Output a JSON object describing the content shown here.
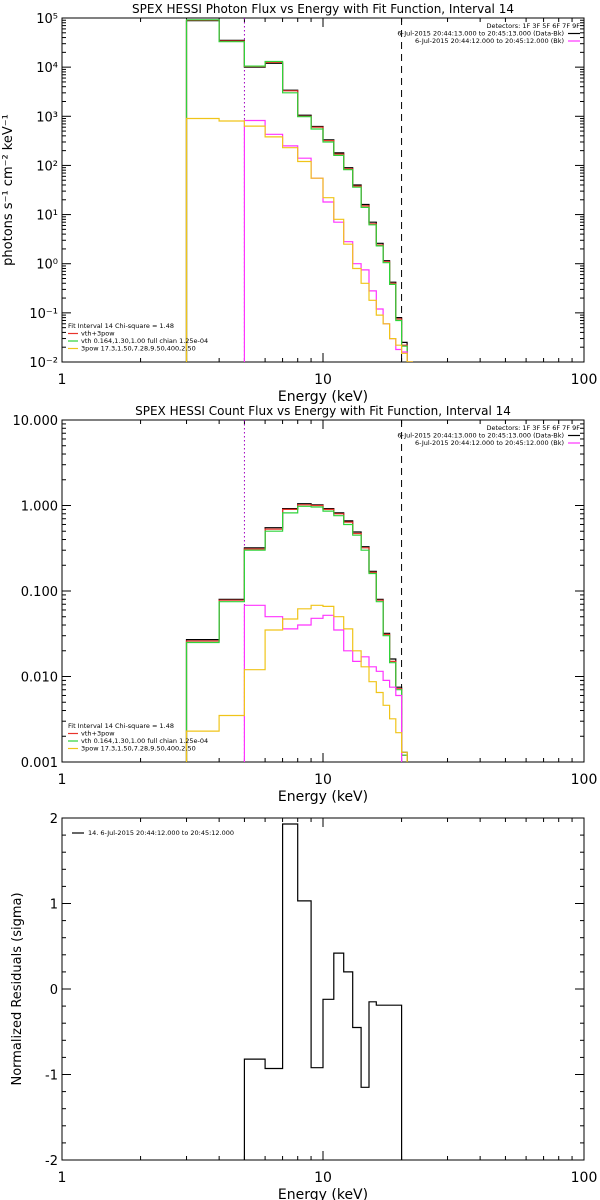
{
  "colors": {
    "data": "#000000",
    "total": "#e8342c",
    "vth": "#2fd33a",
    "bpow": "#ff33ff",
    "bpow_alt": "#f0c419",
    "cutoff": "#a000c0"
  },
  "chart_data": [
    {
      "id": "photon",
      "type": "line",
      "title": "SPEX HESSI Photon Flux vs Energy with Fit Function, Interval 14",
      "xlabel": "Energy (keV)",
      "ylabel": "photons s⁻¹ cm⁻² keV⁻¹",
      "xscale": "log",
      "yscale": "log",
      "xlim": [
        1,
        100
      ],
      "ylim": [
        0.01,
        100000
      ],
      "x_ticks": [
        {
          "v": 1,
          "label": "1"
        },
        {
          "v": 10,
          "label": "10"
        },
        {
          "v": 100,
          "label": "100"
        }
      ],
      "y_ticks": [
        {
          "v": 0.01,
          "label": "10⁻²"
        },
        {
          "v": 0.1,
          "label": "10⁻¹"
        },
        {
          "v": 1,
          "label": "10⁰"
        },
        {
          "v": 10,
          "label": "10¹"
        },
        {
          "v": 100,
          "label": "10²"
        },
        {
          "v": 1000,
          "label": "10³"
        },
        {
          "v": 10000,
          "label": "10⁴"
        },
        {
          "v": 100000,
          "label": "10⁵"
        }
      ],
      "vlines": [
        {
          "x": 5.0,
          "style": "dotted",
          "color": "cutoff"
        },
        {
          "x": 20.0,
          "style": "dashed",
          "color": "data"
        }
      ],
      "header": [
        "Detectors: 1F 3F 5F 6F 7F 9F",
        "6-Jul-2015 20:44:13.000 to 20:45:13.000 (Data-Bk)",
        "6-Jul-2015 20:44:12.000 to 20:45:12.000 (Bk)"
      ],
      "legend": [
        "Fit Interval 14    Chi-square = 1.48",
        "vth+3pow",
        "vth 0.164,1.30,1.00  full chian 1.25e-04",
        "3pow 17.3,1.50,7.28,9.50,400,2.50"
      ],
      "series": [
        {
          "name": "data",
          "color": "data",
          "edges": [
            3,
            4,
            5,
            6,
            7,
            8,
            9,
            10,
            11,
            12,
            13,
            14,
            15,
            16,
            17,
            18,
            19,
            20,
            21,
            22
          ],
          "values": [
            88000,
            35000,
            10000,
            12000,
            3400,
            1050,
            620,
            330,
            180,
            90,
            40,
            16,
            7,
            2.6,
            1.15,
            0.42,
            0.08,
            0.025,
            0.01
          ]
        },
        {
          "name": "total",
          "color": "total",
          "edges": [
            3,
            4,
            5,
            6,
            7,
            8,
            9,
            10,
            11,
            12,
            13,
            14,
            15,
            16,
            17,
            18,
            19,
            20,
            21,
            22
          ],
          "values": [
            90000,
            34000,
            10300,
            12500,
            3300,
            1000,
            600,
            320,
            170,
            85,
            38,
            15,
            6.5,
            2.4,
            1.1,
            0.4,
            0.075,
            0.022,
            0.01
          ]
        },
        {
          "name": "vth",
          "color": "vth",
          "edges": [
            3,
            4,
            5,
            6,
            7,
            8,
            9,
            10,
            11,
            12,
            13,
            14,
            15,
            16,
            17,
            18,
            19,
            20,
            21,
            22
          ],
          "values": [
            92000,
            33000,
            10500,
            13000,
            3000,
            980,
            550,
            300,
            160,
            82,
            36,
            14,
            6.2,
            2.3,
            1.05,
            0.38,
            0.07,
            0.021,
            0.009
          ]
        },
        {
          "name": "bpow",
          "color": "bpow",
          "edges": [
            5,
            6,
            7,
            8,
            9,
            10,
            11,
            12,
            13,
            14,
            15,
            16,
            17,
            18,
            19,
            20,
            21
          ],
          "values": [
            820,
            430,
            250,
            140,
            55,
            18,
            7,
            2.8,
            1.0,
            0.75,
            0.28,
            0.12,
            0.06,
            0.03,
            0.018,
            0.016
          ]
        },
        {
          "name": "bpow_alt",
          "color": "bpow_alt",
          "edges": [
            3,
            4,
            5,
            6,
            7,
            8,
            9,
            10,
            11,
            12,
            13,
            14,
            15,
            16,
            17,
            18,
            19,
            20,
            21,
            22
          ],
          "values": [
            900,
            800,
            630,
            380,
            230,
            120,
            55,
            22,
            8,
            2.5,
            0.8,
            0.4,
            0.18,
            0.09,
            0.06,
            0.03,
            0.022,
            0.015,
            0.01
          ]
        }
      ]
    },
    {
      "id": "count",
      "type": "line",
      "title": "SPEX HESSI Count Flux vs Energy with Fit Function, Interval 14",
      "xlabel": "Energy (keV)",
      "ylabel": "",
      "xscale": "log",
      "yscale": "log",
      "xlim": [
        1,
        100
      ],
      "ylim": [
        0.001,
        10
      ],
      "x_ticks": [
        {
          "v": 1,
          "label": "1"
        },
        {
          "v": 10,
          "label": "10"
        },
        {
          "v": 100,
          "label": "100"
        }
      ],
      "y_ticks": [
        {
          "v": 0.001,
          "label": "0.001"
        },
        {
          "v": 0.01,
          "label": "0.010"
        },
        {
          "v": 0.1,
          "label": "0.100"
        },
        {
          "v": 1,
          "label": "1.000"
        },
        {
          "v": 10,
          "label": "10.000"
        }
      ],
      "vlines": [
        {
          "x": 5.0,
          "style": "dotted",
          "color": "cutoff"
        },
        {
          "x": 20.0,
          "style": "dashed",
          "color": "data"
        }
      ],
      "header": [
        "Detectors: 1F 3F 5F 6F 7F 9F",
        "6-Jul-2015 20:44:13.000 to 20:45:13.000 (Data-Bk)",
        "6-Jul-2015 20:44:12.000 to 20:45:12.000 (Bk)"
      ],
      "legend": [
        "Fit Interval 14    Chi-square = 1.48",
        "vth+3pow",
        "vth 0.164,1.30,1.00  full chian 1.25e-04",
        "3pow 17.3,1.50,7.28,9.50,400,2.50"
      ],
      "series": [
        {
          "name": "data",
          "color": "data",
          "edges": [
            3,
            4,
            5,
            6,
            7,
            8,
            9,
            10,
            11,
            12,
            13,
            14,
            15,
            16,
            17,
            18,
            19,
            20,
            21,
            22
          ],
          "values": [
            0.027,
            0.08,
            0.32,
            0.55,
            0.92,
            1.05,
            1.02,
            0.92,
            0.82,
            0.66,
            0.49,
            0.33,
            0.17,
            0.08,
            0.032,
            0.016,
            0.0075,
            0.0013,
            0.0009
          ]
        },
        {
          "name": "total",
          "color": "total",
          "edges": [
            3,
            4,
            5,
            6,
            7,
            8,
            9,
            10,
            11,
            12,
            13,
            14,
            15,
            16,
            17,
            18,
            19,
            20,
            21,
            22
          ],
          "values": [
            0.026,
            0.078,
            0.31,
            0.53,
            0.9,
            1.02,
            1.0,
            0.9,
            0.8,
            0.64,
            0.47,
            0.32,
            0.165,
            0.078,
            0.031,
            0.015,
            0.0072,
            0.0012,
            0.0009
          ]
        },
        {
          "name": "vth",
          "color": "vth",
          "edges": [
            3,
            4,
            5,
            6,
            7,
            8,
            9,
            10,
            11,
            12,
            13,
            14,
            15,
            16,
            17,
            18,
            19,
            20,
            21,
            22
          ],
          "values": [
            0.025,
            0.075,
            0.3,
            0.5,
            0.82,
            0.98,
            0.96,
            0.86,
            0.76,
            0.6,
            0.45,
            0.3,
            0.16,
            0.075,
            0.03,
            0.0145,
            0.007,
            0.0012,
            0.0008
          ]
        },
        {
          "name": "bpow",
          "color": "bpow",
          "edges": [
            5,
            6,
            7,
            8,
            9,
            10,
            11,
            12,
            13,
            14,
            15,
            16,
            17,
            18,
            19,
            20
          ],
          "values": [
            0.068,
            0.05,
            0.036,
            0.04,
            0.048,
            0.052,
            0.035,
            0.02,
            0.015,
            0.017,
            0.013,
            0.0115,
            0.009,
            0.0075,
            0.006
          ]
        },
        {
          "name": "bpow_alt",
          "color": "bpow_alt",
          "edges": [
            3,
            4,
            5,
            6,
            7,
            8,
            9,
            10,
            11,
            12,
            13,
            14,
            15,
            16,
            17,
            18,
            19,
            20,
            21,
            22
          ],
          "values": [
            0.0023,
            0.0035,
            0.012,
            0.035,
            0.047,
            0.062,
            0.068,
            0.066,
            0.05,
            0.036,
            0.02,
            0.013,
            0.0087,
            0.0065,
            0.0046,
            0.0032,
            0.0022,
            0.0013,
            0.0009
          ]
        }
      ]
    },
    {
      "id": "resid",
      "type": "line",
      "title": "",
      "xlabel": "Energy (keV)",
      "ylabel": "Normalized Residuals (sigma)",
      "xscale": "log",
      "yscale": "linear",
      "xlim": [
        1,
        100
      ],
      "ylim": [
        -2,
        2
      ],
      "x_ticks": [
        {
          "v": 1,
          "label": "1"
        },
        {
          "v": 10,
          "label": "10"
        },
        {
          "v": 100,
          "label": "100"
        }
      ],
      "y_ticks": [
        {
          "v": -2,
          "label": "-2"
        },
        {
          "v": -1,
          "label": "-1"
        },
        {
          "v": 0,
          "label": "0"
        },
        {
          "v": 1,
          "label": "1"
        },
        {
          "v": 2,
          "label": "2"
        }
      ],
      "vlines": [],
      "header": [],
      "legend_line": "14.  6-Jul-2015 20:44:12.000 to 20:45:12.000",
      "series": [
        {
          "name": "residuals",
          "color": "data",
          "edges": [
            5,
            6,
            7,
            8,
            9,
            10,
            11,
            12,
            13,
            14,
            15,
            16,
            17,
            18,
            19,
            20
          ],
          "values": [
            -0.82,
            -0.93,
            1.93,
            1.03,
            -0.92,
            -0.12,
            0.42,
            0.2,
            -0.45,
            -1.15,
            -0.15,
            -0.19,
            -0.19,
            -0.19,
            -0.19
          ]
        }
      ]
    }
  ]
}
